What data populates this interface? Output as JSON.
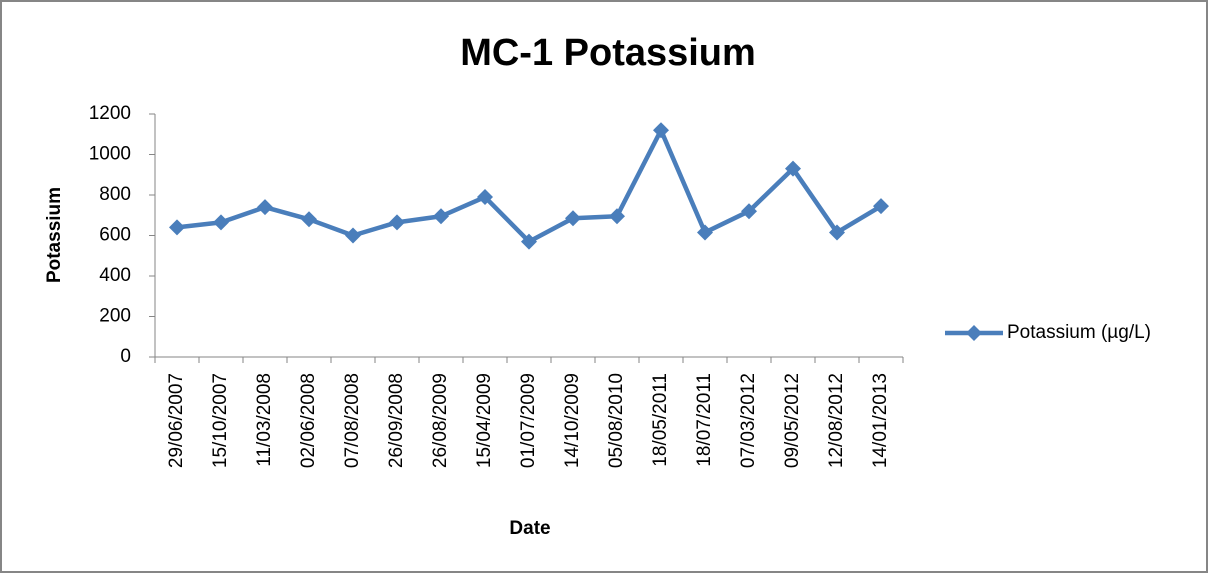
{
  "chart_data": {
    "type": "line",
    "title": "MC-1 Potassium",
    "x_label": "Date",
    "y_label": "Potassium",
    "categories": [
      "29/06/2007",
      "15/10/2007",
      "11/03/2008",
      "02/06/2008",
      "07/08/2008",
      "26/09/2008",
      "26/08/2009",
      "15/04/2009",
      "01/07/2009",
      "14/10/2009",
      "05/08/2010",
      "18/05/2011",
      "18/07/2011",
      "07/03/2012",
      "09/05/2012",
      "12/08/2012",
      "14/01/2013"
    ],
    "series": [
      {
        "name": "Potassium (µg/L)",
        "color": "#4a7ebb",
        "values": [
          640,
          665,
          740,
          680,
          600,
          665,
          695,
          790,
          570,
          685,
          695,
          1120,
          615,
          720,
          930,
          615,
          745
        ]
      }
    ],
    "ylim": [
      0,
      1200
    ],
    "yticks": [
      0,
      200,
      400,
      600,
      800,
      1000,
      1200
    ],
    "grid": false,
    "legend": "right"
  }
}
